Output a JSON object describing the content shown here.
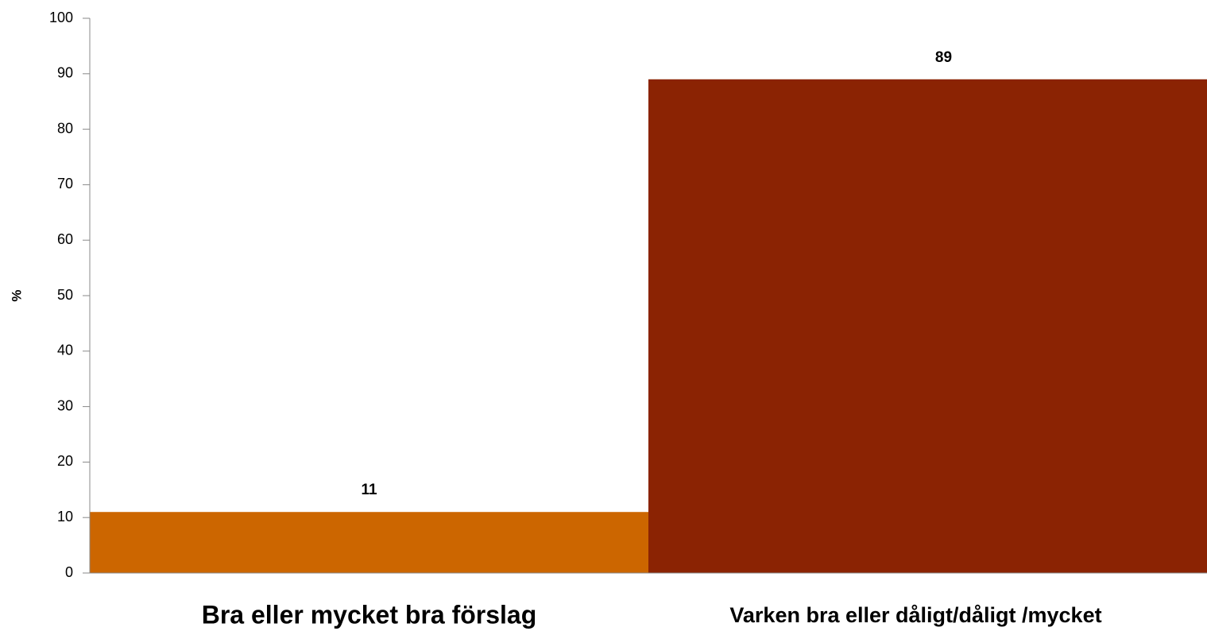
{
  "chart_data": {
    "type": "bar",
    "ylabel": "%",
    "categories": [
      "Bra eller mycket bra förslag",
      "Varken bra eller dåligt/dåligt /mycket"
    ],
    "values": [
      11,
      89
    ],
    "colors": [
      "#cc6600",
      "#8b2303"
    ],
    "ylim": [
      0,
      100
    ],
    "yticks": [
      0,
      10,
      20,
      30,
      40,
      50,
      60,
      70,
      80,
      90,
      100
    ]
  }
}
